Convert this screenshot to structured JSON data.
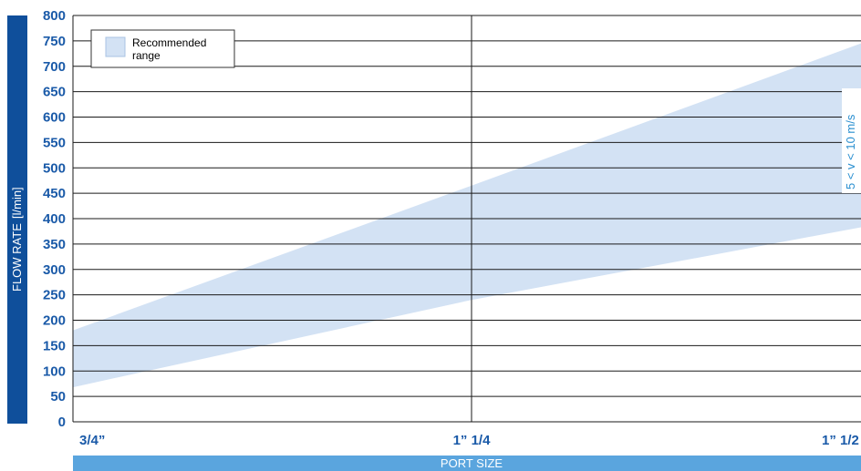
{
  "chart_data": {
    "type": "area",
    "xlabel": "PORT SIZE",
    "ylabel": "FLOW RATE",
    "ylabel_unit": "[l/min]",
    "categories": [
      "3/4”",
      "1” 1/4",
      "1” 1/2"
    ],
    "ylim": [
      0,
      800
    ],
    "yticks": [
      0,
      50,
      100,
      150,
      200,
      250,
      300,
      350,
      400,
      450,
      500,
      550,
      600,
      650,
      700,
      750,
      800
    ],
    "grid": true,
    "legend": {
      "position": "top-left",
      "entries": [
        {
          "label_line1": "Recommended",
          "label_line2": "range"
        }
      ]
    },
    "series": [
      {
        "name": "Recommended range",
        "lower": [
          68,
          240,
          383
        ],
        "upper": [
          180,
          465,
          745
        ]
      }
    ],
    "annotation": "5 < v < 10 m/s",
    "colors": {
      "band": "#d3e2f4",
      "axis_bar": "#0f4f9b",
      "xlabel_bar": "#5aa5de",
      "tick_text": "#1a5aa8",
      "annotation": "#2a8fd0"
    }
  }
}
